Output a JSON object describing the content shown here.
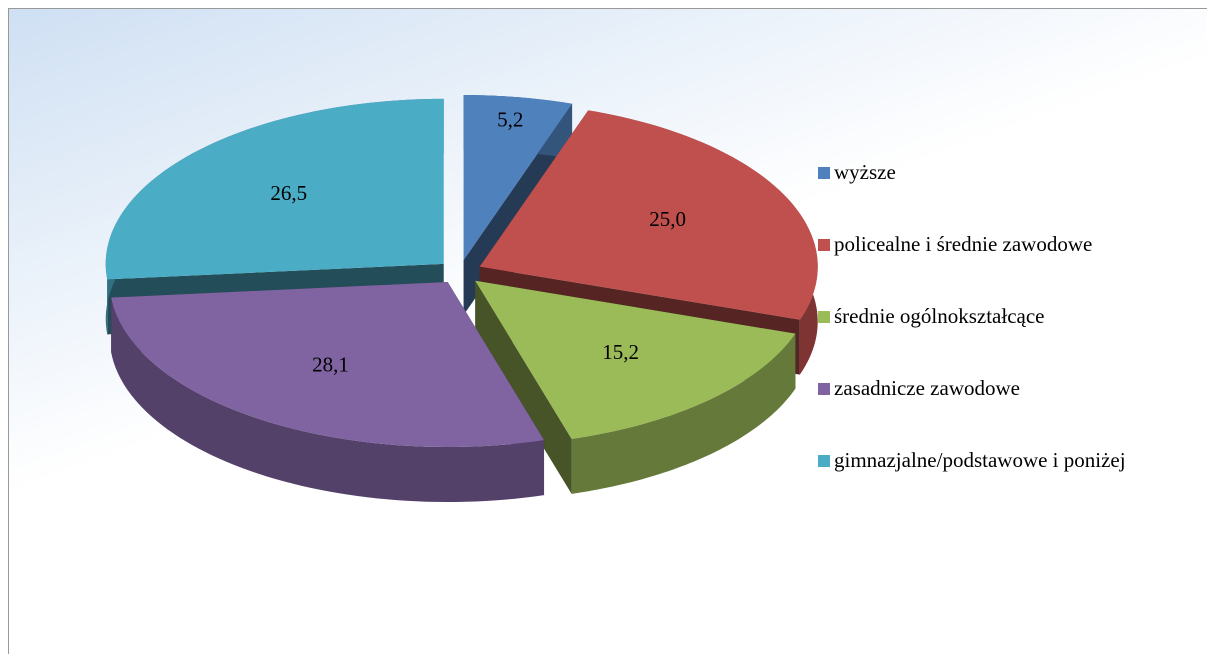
{
  "chart_data": {
    "type": "pie",
    "categories": [
      "wyższe",
      "policealne i średnie zawodowe",
      "średnie ogólnokształcące",
      "zasadnicze zawodowe",
      "gimnazjalne/podstawowe i poniżej"
    ],
    "values": [
      5.2,
      25.0,
      15.2,
      28.1,
      26.5
    ],
    "value_labels": [
      "5,2",
      "25,0",
      "15,2",
      "28,1",
      "26,5"
    ],
    "colors": [
      "#4f81bd",
      "#c0504d",
      "#9bbb59",
      "#8064a2",
      "#4bacc6"
    ],
    "legend": "right"
  }
}
